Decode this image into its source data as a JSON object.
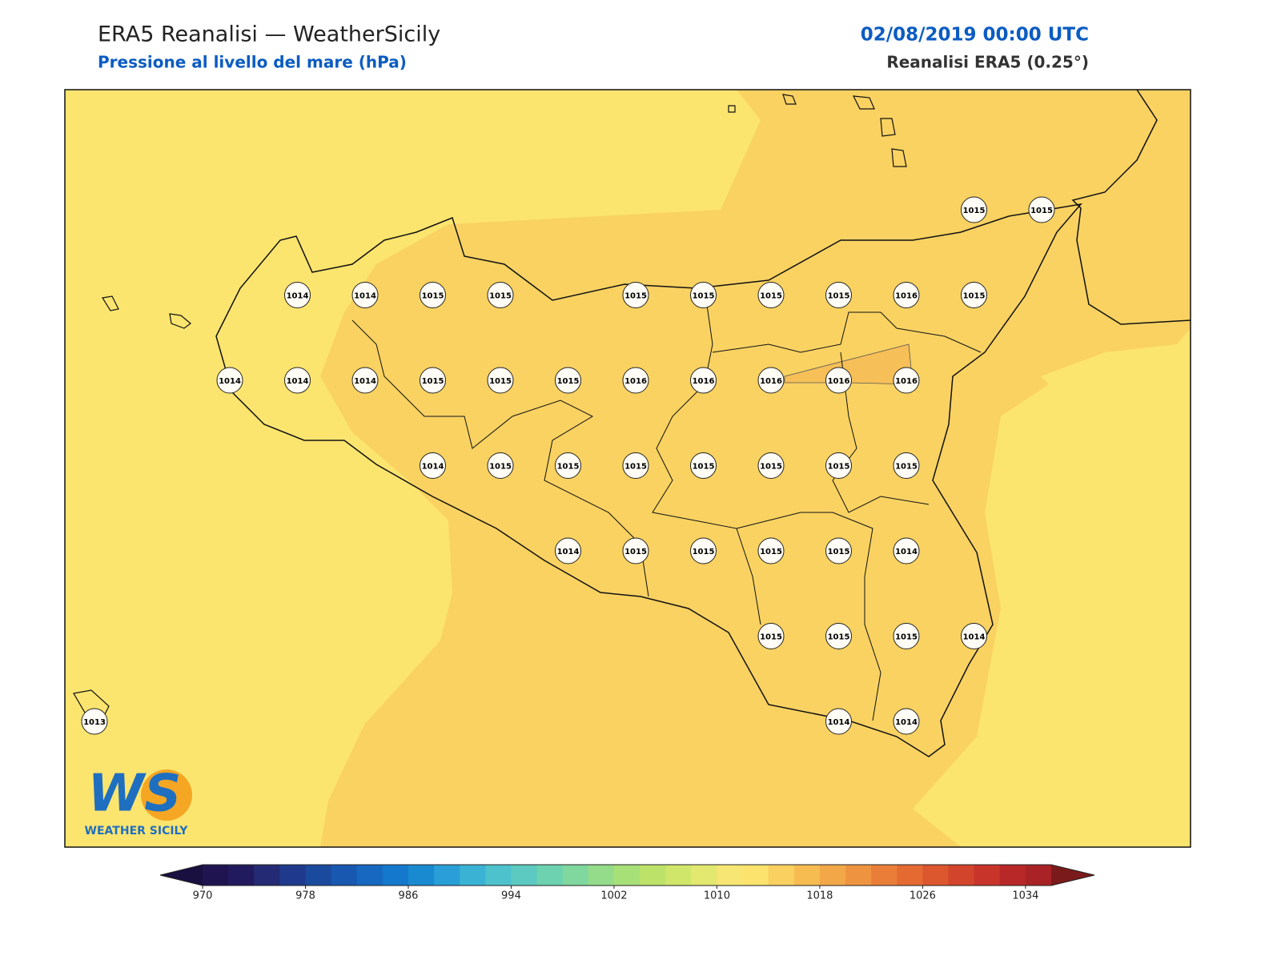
{
  "header": {
    "title": "ERA5 Reanalisi — WeatherSicily",
    "subtitle": "Pressione al livello del mare (hPa)",
    "date": "02/08/2019 00:00 UTC",
    "source": "Reanalisi ERA5 (0.25°)"
  },
  "stations": [
    1015,
    1015,
    1014,
    1014,
    1015,
    1015,
    1015,
    1015,
    1015,
    1015,
    1016,
    1015,
    1014,
    1014,
    1014,
    1015,
    1015,
    1015,
    1016,
    1016,
    1016,
    1016,
    1016,
    1014,
    1015,
    1015,
    1015,
    1015,
    1015,
    1015,
    1015,
    1014,
    1015,
    1015,
    1015,
    1015,
    1014,
    1015,
    1015,
    1015,
    1014,
    1013,
    1014,
    1014
  ],
  "colorbar": {
    "lim": [
      970,
      1036
    ],
    "ticks": [
      970,
      978,
      986,
      994,
      1002,
      1010,
      1018,
      1026,
      1034
    ],
    "colors": [
      "#1f1450",
      "#221a5e",
      "#242a73",
      "#1f3a8c",
      "#1a4a9e",
      "#1858b0",
      "#1668c0",
      "#1478cc",
      "#1a8ad0",
      "#2a9ed6",
      "#3ab2d4",
      "#4ec2cc",
      "#5ccac0",
      "#6cd2b0",
      "#80d89e",
      "#94dc8a",
      "#a8e078",
      "#bce26a",
      "#d0e66a",
      "#e2e870",
      "#f7e673",
      "#fbe36e",
      "#fad060",
      "#f6bc52",
      "#f2a848",
      "#ee9440",
      "#ea7e38",
      "#e46a32",
      "#dc562e",
      "#d2442c",
      "#c8342a",
      "#b82828",
      "#a82226"
    ],
    "extend_colors": [
      "#1a1040",
      "#7a1a1a"
    ]
  },
  "logo": {
    "mark": "WS",
    "name": "WEATHER SICILY"
  }
}
